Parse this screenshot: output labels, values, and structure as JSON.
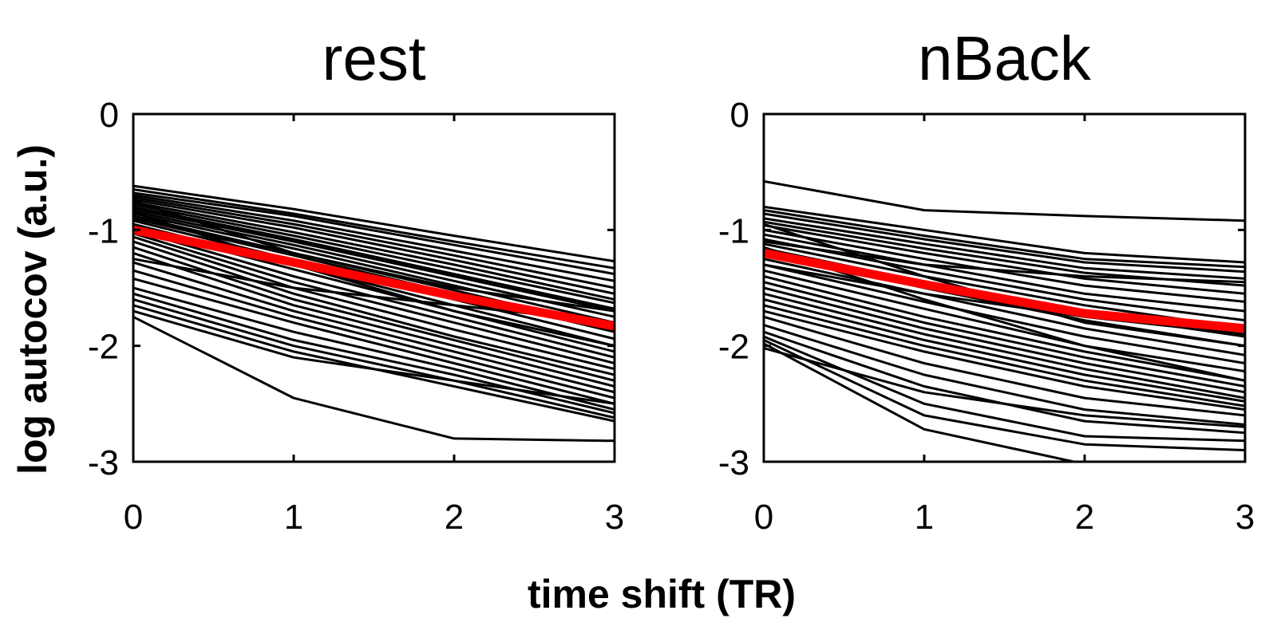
{
  "figure": {
    "ylabel": "log autocov (a.u.)",
    "xlabel": "time shift (TR)"
  },
  "chart_data": [
    {
      "type": "line",
      "title": "rest",
      "x": [
        0,
        1,
        2,
        3
      ],
      "xlim": [
        0,
        3
      ],
      "ylim": [
        -3,
        0
      ],
      "xticks": [
        "0",
        "1",
        "2",
        "3"
      ],
      "yticks": [
        "-3",
        "-2",
        "-1",
        "0"
      ],
      "grid": false,
      "mean_series": {
        "values": [
          -1.0,
          -1.28,
          -1.57,
          -1.83
        ],
        "color": "#ff0000"
      },
      "series_color": "#000000",
      "series": [
        {
          "values": [
            -0.62,
            -0.82,
            -1.05,
            -1.27
          ]
        },
        {
          "values": [
            -0.65,
            -0.86,
            -1.1,
            -1.33
          ]
        },
        {
          "values": [
            -0.68,
            -0.88,
            -1.13,
            -1.38
          ]
        },
        {
          "values": [
            -0.7,
            -0.92,
            -1.18,
            -1.44
          ]
        },
        {
          "values": [
            -0.72,
            -0.95,
            -1.22,
            -1.5
          ]
        },
        {
          "values": [
            -0.74,
            -0.98,
            -1.26,
            -1.55
          ]
        },
        {
          "values": [
            -0.76,
            -1.02,
            -1.3,
            -1.6
          ]
        },
        {
          "values": [
            -0.78,
            -1.05,
            -1.34,
            -1.63
          ]
        },
        {
          "values": [
            -0.8,
            -1.08,
            -1.38,
            -1.68
          ]
        },
        {
          "values": [
            -0.82,
            -1.1,
            -1.4,
            -1.7
          ]
        },
        {
          "values": [
            -0.84,
            -1.13,
            -1.44,
            -1.75
          ]
        },
        {
          "values": [
            -0.86,
            -1.16,
            -1.48,
            -1.8
          ]
        },
        {
          "values": [
            -0.88,
            -1.2,
            -1.52,
            -1.85
          ]
        },
        {
          "values": [
            -0.9,
            -1.22,
            -1.55,
            -1.88
          ]
        },
        {
          "values": [
            -0.92,
            -1.26,
            -1.6,
            -1.94
          ]
        },
        {
          "values": [
            -0.95,
            -1.3,
            -1.65,
            -2.0
          ]
        },
        {
          "values": [
            -0.98,
            -1.34,
            -1.7,
            -2.05
          ]
        },
        {
          "values": [
            -1.0,
            -1.4,
            -1.75,
            -2.1
          ]
        },
        {
          "values": [
            -1.03,
            -1.45,
            -1.8,
            -2.15
          ]
        },
        {
          "values": [
            -1.06,
            -1.5,
            -1.86,
            -2.2
          ]
        },
        {
          "values": [
            -1.1,
            -1.55,
            -1.92,
            -2.25
          ]
        },
        {
          "values": [
            -1.15,
            -1.6,
            -1.95,
            -2.3
          ]
        },
        {
          "values": [
            -1.2,
            -1.65,
            -2.0,
            -2.35
          ]
        },
        {
          "values": [
            -1.28,
            -1.7,
            -2.05,
            -2.4
          ]
        },
        {
          "values": [
            -1.35,
            -1.75,
            -2.1,
            -2.45
          ]
        },
        {
          "values": [
            -1.42,
            -1.8,
            -2.15,
            -2.5
          ]
        },
        {
          "values": [
            -1.5,
            -1.88,
            -2.2,
            -2.55
          ]
        },
        {
          "values": [
            -1.55,
            -1.95,
            -2.25,
            -2.58
          ]
        },
        {
          "values": [
            -1.6,
            -2.0,
            -2.3,
            -2.62
          ]
        },
        {
          "values": [
            -1.65,
            -2.05,
            -2.35,
            -2.65
          ]
        },
        {
          "values": [
            -1.7,
            -2.1,
            -2.3,
            -2.5
          ]
        },
        {
          "values": [
            -1.75,
            -2.45,
            -2.8,
            -2.82
          ]
        },
        {
          "values": [
            -0.75,
            -1.2,
            -1.5,
            -1.7
          ]
        },
        {
          "values": [
            -0.85,
            -1.3,
            -1.7,
            -2.0
          ]
        },
        {
          "values": [
            -1.25,
            -1.5,
            -1.65,
            -1.8
          ]
        }
      ]
    },
    {
      "type": "line",
      "title": "nBack",
      "x": [
        0,
        1,
        2,
        3
      ],
      "xlim": [
        0,
        3
      ],
      "ylim": [
        -3,
        0
      ],
      "xticks": [
        "0",
        "1",
        "2",
        "3"
      ],
      "yticks": [
        "-3",
        "-2",
        "-1",
        "0"
      ],
      "grid": false,
      "mean_series": {
        "values": [
          -1.2,
          -1.47,
          -1.72,
          -1.85
        ],
        "color": "#ff0000"
      },
      "series_color": "#000000",
      "series": [
        {
          "values": [
            -0.58,
            -0.83,
            -0.88,
            -0.92
          ]
        },
        {
          "values": [
            -0.8,
            -1.0,
            -1.2,
            -1.28
          ]
        },
        {
          "values": [
            -0.83,
            -1.05,
            -1.25,
            -1.32
          ]
        },
        {
          "values": [
            -0.86,
            -1.08,
            -1.28,
            -1.36
          ]
        },
        {
          "values": [
            -0.9,
            -1.12,
            -1.33,
            -1.42
          ]
        },
        {
          "values": [
            -0.93,
            -1.16,
            -1.37,
            -1.48
          ]
        },
        {
          "values": [
            -0.96,
            -1.2,
            -1.42,
            -1.55
          ]
        },
        {
          "values": [
            -1.0,
            -1.25,
            -1.48,
            -1.62
          ]
        },
        {
          "values": [
            -1.04,
            -1.3,
            -1.55,
            -1.7
          ]
        },
        {
          "values": [
            -1.08,
            -1.35,
            -1.6,
            -1.78
          ]
        },
        {
          "values": [
            -1.12,
            -1.4,
            -1.65,
            -1.85
          ]
        },
        {
          "values": [
            -1.16,
            -1.45,
            -1.72,
            -1.92
          ]
        },
        {
          "values": [
            -1.2,
            -1.5,
            -1.78,
            -2.0
          ]
        },
        {
          "values": [
            -1.25,
            -1.55,
            -1.85,
            -2.08
          ]
        },
        {
          "values": [
            -1.3,
            -1.62,
            -1.92,
            -2.15
          ]
        },
        {
          "values": [
            -1.35,
            -1.68,
            -2.0,
            -2.22
          ]
        },
        {
          "values": [
            -1.4,
            -1.75,
            -2.05,
            -2.3
          ]
        },
        {
          "values": [
            -1.45,
            -1.8,
            -2.1,
            -2.35
          ]
        },
        {
          "values": [
            -1.5,
            -1.85,
            -2.15,
            -2.4
          ]
        },
        {
          "values": [
            -1.55,
            -1.9,
            -2.2,
            -2.45
          ]
        },
        {
          "values": [
            -1.6,
            -1.95,
            -2.25,
            -2.48
          ]
        },
        {
          "values": [
            -1.65,
            -2.0,
            -2.3,
            -2.52
          ]
        },
        {
          "values": [
            -1.7,
            -2.05,
            -2.35,
            -2.55
          ]
        },
        {
          "values": [
            -1.75,
            -2.15,
            -2.45,
            -2.6
          ]
        },
        {
          "values": [
            -1.82,
            -2.25,
            -2.55,
            -2.68
          ]
        },
        {
          "values": [
            -1.88,
            -2.35,
            -2.65,
            -2.75
          ]
        },
        {
          "values": [
            -1.92,
            -2.5,
            -2.78,
            -2.82
          ]
        },
        {
          "values": [
            -1.95,
            -2.6,
            -2.85,
            -2.9
          ]
        },
        {
          "values": [
            -1.98,
            -2.72,
            -3.02,
            -3.02
          ]
        },
        {
          "values": [
            -2.02,
            -2.4,
            -2.6,
            -2.7
          ]
        },
        {
          "values": [
            -0.95,
            -1.4,
            -1.8,
            -2.0
          ]
        },
        {
          "values": [
            -1.1,
            -1.3,
            -1.4,
            -1.45
          ]
        },
        {
          "values": [
            -1.3,
            -1.55,
            -1.75,
            -1.9
          ]
        },
        {
          "values": [
            -1.15,
            -1.6,
            -2.0,
            -2.3
          ]
        }
      ]
    }
  ]
}
